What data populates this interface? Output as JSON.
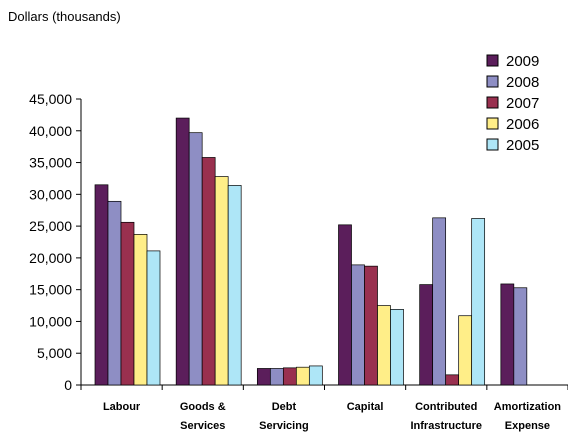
{
  "chart_data": {
    "type": "bar",
    "ylabel": "Dollars (thousands)",
    "categories": [
      [
        "Labour"
      ],
      [
        "Goods &",
        "Services"
      ],
      [
        "Debt",
        "Servicing"
      ],
      [
        "Capital"
      ],
      [
        "Contributed",
        "Infrastructure"
      ],
      [
        "Amortization",
        "Expense"
      ]
    ],
    "series": [
      {
        "name": "2009",
        "color": "#5b1e5b",
        "values": [
          31500,
          42000,
          2600,
          25200,
          15800,
          15900
        ]
      },
      {
        "name": "2008",
        "color": "#8e8ec4",
        "values": [
          28900,
          39700,
          2600,
          18900,
          26300,
          15300
        ]
      },
      {
        "name": "2007",
        "color": "#99304f",
        "values": [
          25600,
          35800,
          2700,
          18700,
          1600,
          0
        ]
      },
      {
        "name": "2006",
        "color": "#ffee88",
        "values": [
          23700,
          32800,
          2800,
          12500,
          10900,
          0
        ]
      },
      {
        "name": "2005",
        "color": "#aee6f7",
        "values": [
          21100,
          31400,
          3000,
          11900,
          26200,
          0
        ]
      }
    ],
    "ylim": [
      0,
      45000
    ],
    "yticks": [
      "0",
      "5,000",
      "10,000",
      "15,000",
      "20,000",
      "25,000",
      "30,000",
      "35,000",
      "40,000",
      "45,000"
    ],
    "legend_order": [
      "2009",
      "2008",
      "2007",
      "2006",
      "2005"
    ],
    "legend_position": "top-right",
    "grid": false
  }
}
